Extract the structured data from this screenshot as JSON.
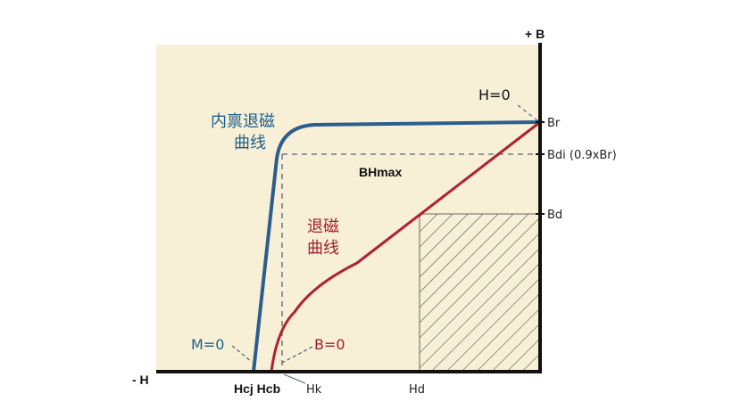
{
  "axes": {
    "y_axis_label": "+ B",
    "x_axis_label": "- H"
  },
  "curves": {
    "intrinsic": {
      "label_line1": "内禀退磁",
      "label_line2": "曲线",
      "color": "#1d5f8a"
    },
    "normal": {
      "label_line1": "退磁",
      "label_line2": "曲线",
      "color": "#a31d2b"
    }
  },
  "points": {
    "h0": "H=0",
    "br": "Br",
    "bdi": "Bdi (0.9xBr)",
    "bd": "Bd",
    "bhmax": "BHmax",
    "m0": "M=0",
    "b0": "B=0",
    "hcj_hcb": "Hcj Hcb",
    "hk": "Hk",
    "hd": "Hd"
  },
  "colors": {
    "background_panel": "#f7efd6",
    "axis": "#111111",
    "dashed": "#5a6673",
    "hatch": "#555555"
  }
}
